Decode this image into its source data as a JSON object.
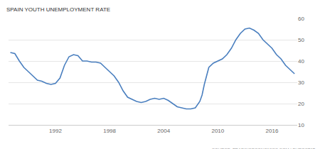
{
  "chart_data": {
    "type": "line",
    "title": "SPAIN YOUTH UNEMPLOYMENT RATE",
    "annotations": [
      "SOURCE: TRADINGECONOMICS.COM | EUROSTAT"
    ],
    "x": [
      1987,
      1987.5,
      1988,
      1988.5,
      1989,
      1989.5,
      1990,
      1990.5,
      1991,
      1991.5,
      1992,
      1992.5,
      1993,
      1993.5,
      1994,
      1994.5,
      1995,
      1995.5,
      1996,
      1996.5,
      1997,
      1997.5,
      1998,
      1998.5,
      1999,
      1999.5,
      2000,
      2000.5,
      2001,
      2001.5,
      2002,
      2002.5,
      2003,
      2003.5,
      2004,
      2004.5,
      2005,
      2005.5,
      2006,
      2006.5,
      2007,
      2007.5,
      2008,
      2008.25,
      2008.5,
      2008.75,
      2009,
      2009.5,
      2010,
      2010.5,
      2011,
      2011.5,
      2012,
      2012.5,
      2013,
      2013.5,
      2014,
      2014.5,
      2015,
      2015.5,
      2016,
      2016.5,
      2017,
      2017.5,
      2018,
      2018.5
    ],
    "values": [
      44,
      43.5,
      40,
      37,
      35,
      33,
      31,
      30.5,
      29.5,
      29,
      29.5,
      32,
      38,
      42,
      43,
      42.5,
      40,
      40,
      39.5,
      39.5,
      39,
      37,
      35,
      33,
      30,
      26,
      23,
      22,
      21,
      20.5,
      21,
      22,
      22.5,
      22,
      22.5,
      21.5,
      20,
      18.5,
      18,
      17.5,
      17.5,
      18,
      21,
      24,
      29,
      33,
      37,
      39,
      40,
      41,
      43,
      46,
      50,
      53,
      55,
      55.5,
      54.5,
      53,
      50,
      48,
      46,
      43,
      41,
      38,
      36,
      34
    ],
    "color": "#4a7fbf",
    "xlim": [
      1986.8,
      2018.8
    ],
    "xticks": [
      1992,
      1998,
      2004,
      2010,
      2016
    ],
    "ylim": [
      10,
      60
    ],
    "yticks": [
      10,
      20,
      30,
      40,
      50,
      60
    ],
    "grid": true
  }
}
